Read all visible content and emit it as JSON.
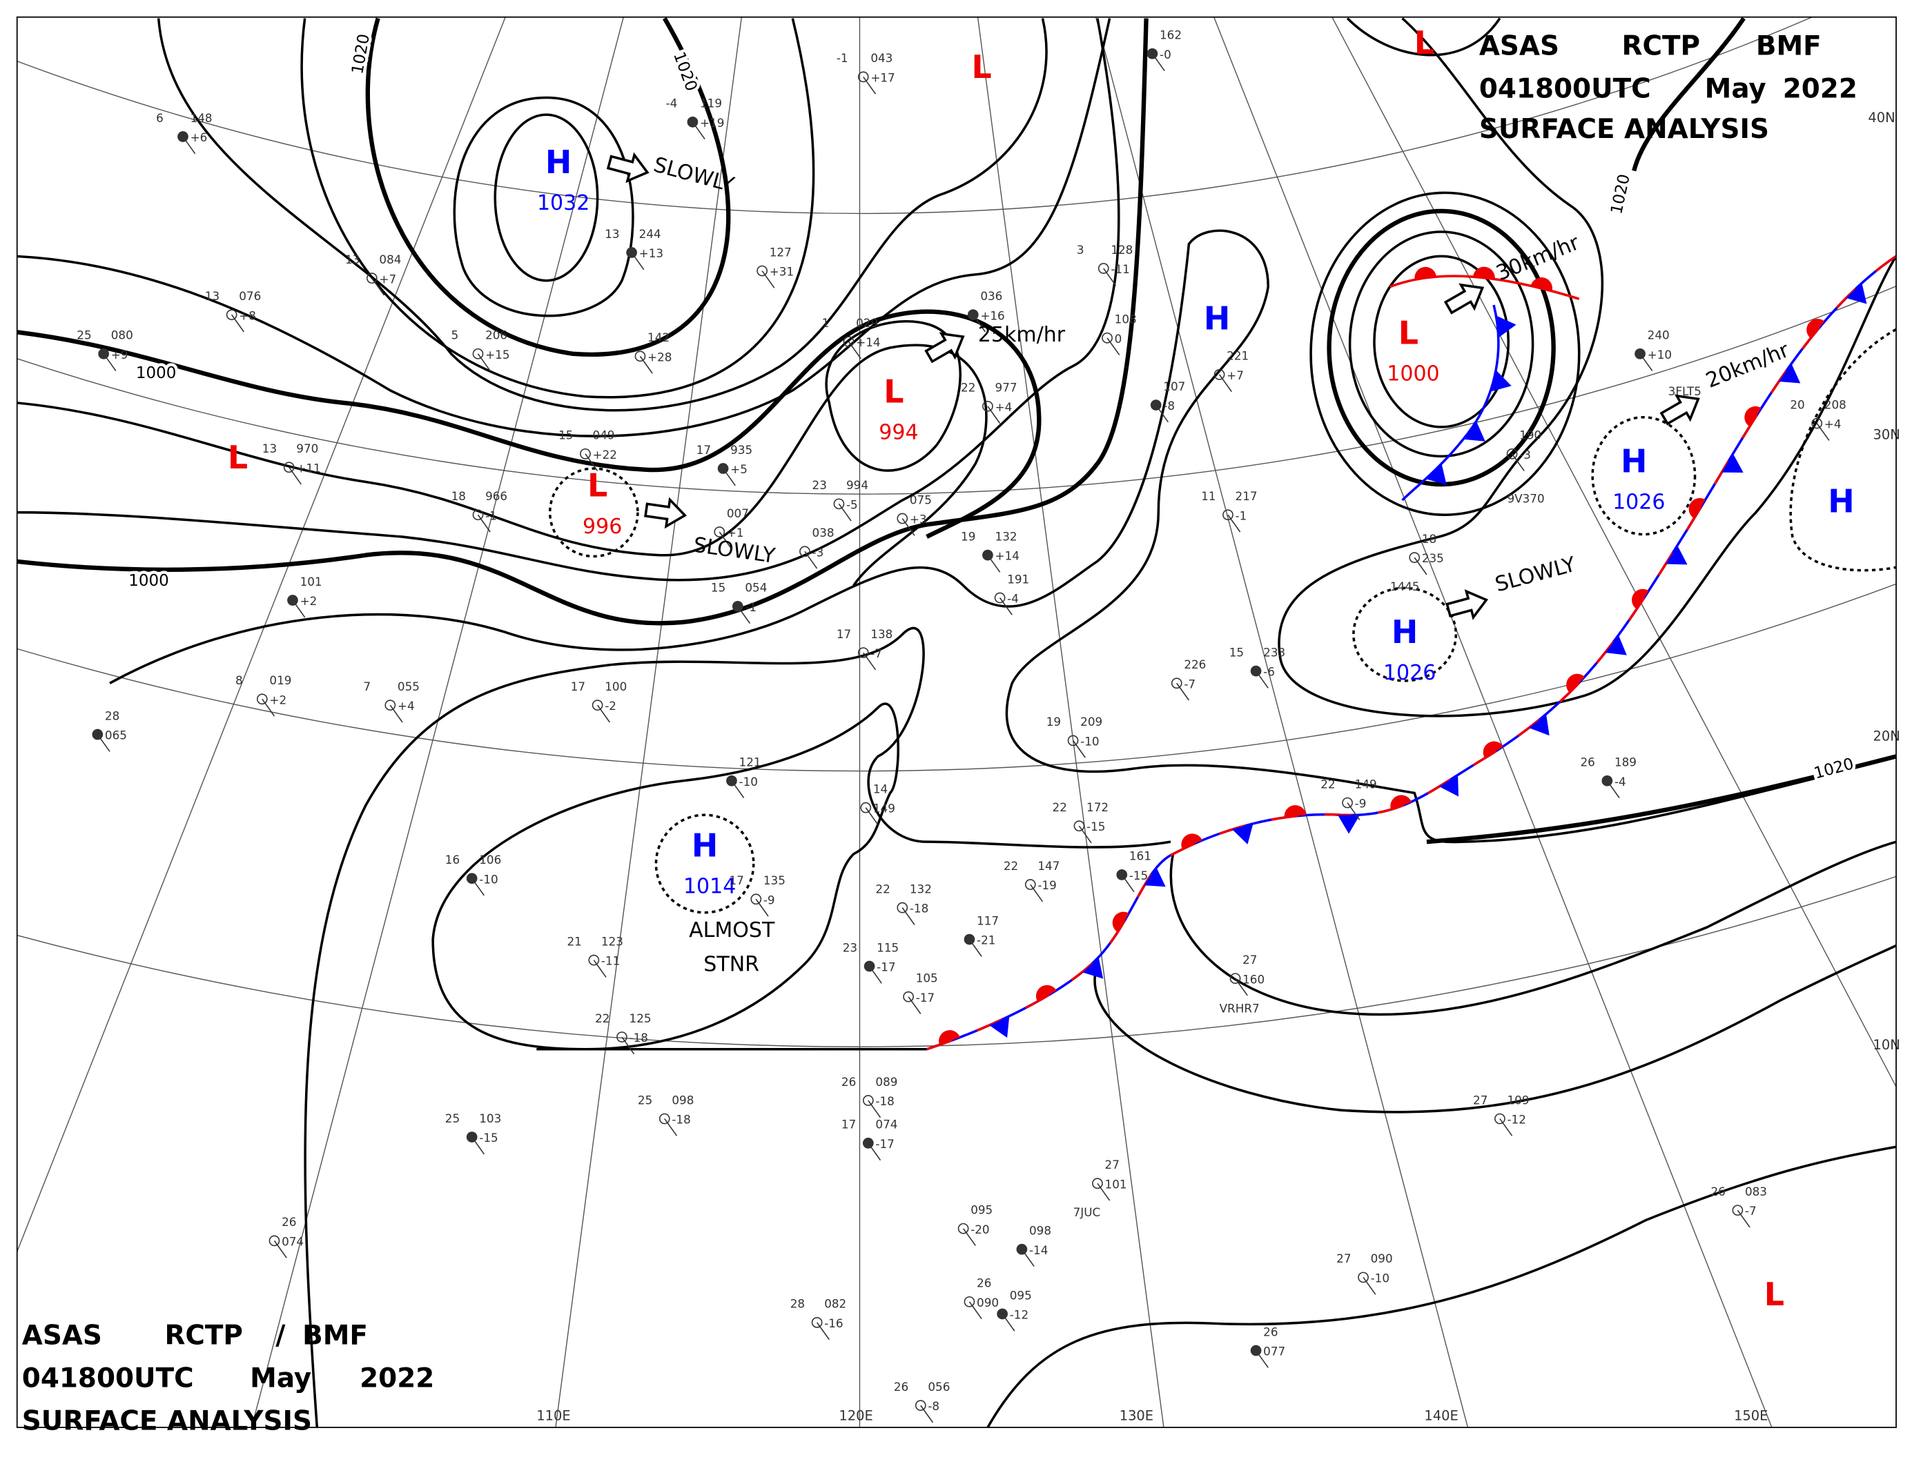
{
  "header": {
    "line1": [
      "ASAS",
      "RCTP",
      "BMF"
    ],
    "line2": [
      "041800UTC",
      "May",
      "2022"
    ],
    "line3": "SURFACE ANALYSIS"
  },
  "footer": {
    "line1": [
      "ASAS",
      "RCTP",
      "/",
      "BMF"
    ],
    "line2": [
      "041800UTC",
      "May",
      "2022"
    ],
    "line3": "SURFACE ANALYSIS"
  },
  "pressure_centers": [
    {
      "type": "H",
      "value": 1032
    },
    {
      "type": "L",
      "value": 996
    },
    {
      "type": "L",
      "value": 994
    },
    {
      "type": "L"
    },
    {
      "type": "L"
    },
    {
      "type": "L"
    },
    {
      "type": "L"
    },
    {
      "type": "L",
      "value": 1000
    },
    {
      "type": "H"
    },
    {
      "type": "H",
      "value": 1026
    },
    {
      "type": "H",
      "value": 1026
    },
    {
      "type": "H"
    },
    {
      "type": "H",
      "value": 1014
    }
  ],
  "isobar_labels": [
    1020,
    1020,
    1000,
    1000,
    1020,
    1020
  ],
  "movements": [
    [
      "SLOWLY"
    ],
    [
      "SLOWLY"
    ],
    [
      "25km/hr"
    ],
    [
      "30km/hr"
    ],
    [
      "20km/hr"
    ],
    [
      "SLOWLY"
    ],
    [
      "ALMOST",
      "STNR"
    ]
  ],
  "latitude_labels": [
    "40N",
    "30N",
    "20N",
    "10N"
  ],
  "longitude_labels": [
    "110E",
    "120E",
    "130E",
    "140E",
    "150E"
  ],
  "stations": [
    [
      "6",
      "148",
      "+6"
    ],
    [
      "13",
      "084",
      "+7"
    ],
    [
      "13",
      "076",
      "+8"
    ],
    [
      "25",
      "080",
      "+9"
    ],
    [
      "13",
      "970",
      "+11"
    ],
    [
      "18",
      "966",
      "-1"
    ],
    [
      "101",
      "+2"
    ],
    [
      "8",
      "019",
      "+2"
    ],
    [
      "7",
      "055",
      "+4"
    ],
    [
      "28",
      "065"
    ],
    [
      "17",
      "100",
      "-2"
    ],
    [
      "5",
      "206",
      "+15"
    ],
    [
      "13",
      "244",
      "+13"
    ],
    [
      "142",
      "+28"
    ],
    [
      "127",
      "+31"
    ],
    [
      "-4",
      "119",
      "+19"
    ],
    [
      "-1",
      "043",
      "+17"
    ],
    [
      "15",
      "049",
      "+22"
    ],
    [
      "17",
      "935",
      "+5"
    ],
    [
      "007",
      "+1"
    ],
    [
      "038",
      "-3"
    ],
    [
      "15",
      "054",
      "-1"
    ],
    [
      "23",
      "994",
      "-5"
    ],
    [
      "1",
      "029",
      "+14"
    ],
    [
      "036",
      "+16"
    ],
    [
      "22",
      "977",
      "+4"
    ],
    [
      "075",
      "+3"
    ],
    [
      "19",
      "132",
      "+14"
    ],
    [
      "191",
      "-4"
    ],
    [
      "17",
      "138",
      "-7"
    ],
    [
      "121",
      "-10"
    ],
    [
      "14",
      "149"
    ],
    [
      "17",
      "135",
      "-9"
    ],
    [
      "16",
      "106",
      "-10"
    ],
    [
      "21",
      "123",
      "-11"
    ],
    [
      "22",
      "125",
      "-18"
    ],
    [
      "23",
      "115",
      "-17"
    ],
    [
      "105",
      "-17"
    ],
    [
      "22",
      "132",
      "-18"
    ],
    [
      "117",
      "-21"
    ],
    [
      "22",
      "147",
      "-19"
    ],
    [
      "22",
      "172",
      "-15"
    ],
    [
      "161",
      "-15"
    ],
    [
      "19",
      "209",
      "-10"
    ],
    [
      "226",
      "-7"
    ],
    [
      "15",
      "233",
      "-6"
    ],
    [
      "108",
      "0"
    ],
    [
      "3",
      "128",
      "-11"
    ],
    [
      "107",
      "-8"
    ],
    [
      "221",
      "+7"
    ],
    [
      "11",
      "217",
      "-1"
    ],
    [
      "162",
      "-0"
    ],
    [
      "18",
      "235"
    ],
    [
      "190",
      "-3"
    ],
    [
      "240",
      "+10"
    ],
    [
      "20",
      "208",
      "+4"
    ],
    [
      "22",
      "149",
      "-9"
    ],
    [
      "26",
      "189",
      "-4"
    ],
    [
      "27",
      "160"
    ],
    [
      "27",
      "109",
      "-12"
    ],
    [
      "25",
      "103",
      "-15"
    ],
    [
      "25",
      "098",
      "-18"
    ],
    [
      "26",
      "089",
      "-18"
    ],
    [
      "17",
      "074",
      "-17"
    ],
    [
      "27",
      "101"
    ],
    [
      "095",
      "-20"
    ],
    [
      "098",
      "-14"
    ],
    [
      "27",
      "090",
      "-10"
    ],
    [
      "26",
      "083",
      "-7"
    ],
    [
      "26",
      "077"
    ],
    [
      "28",
      "082",
      "-16"
    ],
    [
      "26",
      "090"
    ],
    [
      "095",
      "-12"
    ],
    [
      "26",
      "056",
      "-8"
    ],
    [
      "26",
      "074"
    ]
  ],
  "station_ids": [
    "3FLT5",
    "VRHR7",
    "7JUC",
    "9V370",
    "1445"
  ]
}
